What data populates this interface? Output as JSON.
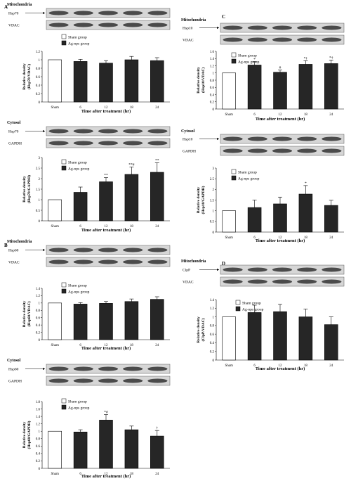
{
  "figure": {
    "panels": [
      {
        "letter": "A",
        "blocks": [
          {
            "section": "Mitochondria",
            "blots": [
              {
                "label": "Hsp70",
                "arrow": true
              },
              {
                "label": "VDAC",
                "arrow": false
              }
            ],
            "ylabel": "Relative density",
            "ylabel2": "(Hsp70/VDAC)",
            "legend": [
              "Sham group",
              "Ag-nps group"
            ],
            "xlabel": "Time after treatment (hr)"
          },
          {
            "section": "Cytosol",
            "blots": [
              {
                "label": "Hsp70",
                "arrow": true
              },
              {
                "label": "GAPDH",
                "arrow": false
              }
            ],
            "ylabel": "Relative density",
            "ylabel2": "(Hsp70/GAPDH)",
            "legend": [
              "Sham group",
              "Ag-nps group"
            ],
            "xlabel": "Time after treatment (hr)"
          }
        ]
      },
      {
        "letter": "B",
        "blocks": [
          {
            "section": "Mitochondria",
            "blots": [
              {
                "label": "Hsp60",
                "arrow": true
              },
              {
                "label": "VDAC",
                "arrow": false
              }
            ],
            "ylabel": "Relative density",
            "ylabel2": "(Hsp60/VDAC)",
            "legend": [
              "Sham group",
              "Ag-nps group"
            ],
            "xlabel": "Time after treatment (hr)"
          },
          {
            "section": "Cytosol",
            "blots": [
              {
                "label": "Hsp60",
                "arrow": true
              },
              {
                "label": "GAPDH",
                "arrow": false
              }
            ],
            "ylabel": "Relative density",
            "ylabel2": "(Hsp60/GAPDH)",
            "legend": [
              "Sham group",
              "Ag-nps group"
            ],
            "xlabel": "Time after treatment (hr)"
          }
        ]
      },
      {
        "letter": "C",
        "blocks": [
          {
            "section": "Mitochondria",
            "blots": [
              {
                "label": "Hsp10",
                "arrow": true
              },
              {
                "label": "VDAC",
                "arrow": false
              }
            ],
            "ylabel": "Relative density",
            "ylabel2": "(Hsp10/VDAC)",
            "legend": [
              "Sham group",
              "Ag-nps group"
            ],
            "xlabel": "Time after treatment (hr)"
          },
          {
            "section": "Cytosol",
            "blots": [
              {
                "label": "Hsp10",
                "arrow": true
              },
              {
                "label": "GAPDH",
                "arrow": false
              }
            ],
            "ylabel": "Relative density",
            "ylabel2": "(Hsp10/GAPDH)",
            "legend": [
              "Sham group",
              "Ag-nps group"
            ],
            "xlabel": "Time after treatment (hr)"
          }
        ]
      },
      {
        "letter": "D",
        "blocks": [
          {
            "section": "Mitochondria",
            "blots": [
              {
                "label": "ClpP",
                "arrow": true
              },
              {
                "label": "VDAC",
                "arrow": false
              }
            ],
            "ylabel": "Relative density",
            "ylabel2": "(ClpP/VDAC)",
            "legend": [
              "Sham group",
              "Ag-nps group"
            ],
            "xlabel": "Time after treatment (hr)"
          }
        ]
      }
    ]
  },
  "chart_data": [
    {
      "type": "bar",
      "panel": "A",
      "section": "Mitochondria",
      "categories": [
        "Sham",
        "6",
        "12",
        "18",
        "24"
      ],
      "values": [
        1.0,
        0.96,
        0.92,
        1.0,
        0.98
      ],
      "errors": [
        0,
        0.05,
        0.06,
        0.08,
        0.07
      ],
      "annotations": [
        "",
        "",
        "",
        "",
        ""
      ],
      "ylim": [
        0,
        1.2
      ],
      "ticks": [
        "0",
        "0.2",
        "0.4",
        "0.6",
        "0.8",
        "1",
        "1.2"
      ]
    },
    {
      "type": "bar",
      "panel": "A",
      "section": "Cytosol",
      "categories": [
        "Sham",
        "6",
        "12",
        "18",
        "24"
      ],
      "values": [
        1.0,
        1.35,
        1.85,
        2.2,
        2.3
      ],
      "errors": [
        0,
        0.25,
        0.2,
        0.35,
        0.45
      ],
      "annotations": [
        "",
        "",
        "**",
        "**#",
        "**"
      ],
      "ylim": [
        0,
        3.0
      ],
      "ticks": [
        "0",
        "0.5",
        "1",
        "1.5",
        "2",
        "2.5",
        "3"
      ]
    },
    {
      "type": "bar",
      "panel": "B",
      "section": "Mitochondria",
      "categories": [
        "Sham",
        "6",
        "12",
        "18",
        "24"
      ],
      "values": [
        1.0,
        0.97,
        0.99,
        1.04,
        1.1
      ],
      "errors": [
        0,
        0.04,
        0.05,
        0.07,
        0.07
      ],
      "annotations": [
        "",
        "",
        "",
        "",
        ""
      ],
      "ylim": [
        0,
        1.4
      ],
      "ticks": [
        "0",
        "0.2",
        "0.4",
        "0.6",
        "0.8",
        "1",
        "1.2",
        "1.4"
      ]
    },
    {
      "type": "bar",
      "panel": "B",
      "section": "Cytosol",
      "categories": [
        "Sham",
        "6",
        "12",
        "18",
        "24"
      ],
      "values": [
        1.0,
        0.98,
        1.3,
        1.04,
        0.87
      ],
      "errors": [
        0,
        0.06,
        0.15,
        0.1,
        0.15
      ],
      "annotations": [
        "",
        "",
        "*#",
        "",
        "†"
      ],
      "ylim": [
        0,
        1.8
      ],
      "ticks": [
        "0",
        "0.2",
        "0.4",
        "0.6",
        "0.8",
        "1",
        "1.2",
        "1.4",
        "1.6",
        "1.8"
      ]
    },
    {
      "type": "bar",
      "panel": "C",
      "section": "Mitochondria",
      "categories": [
        "Sham",
        "6",
        "12",
        "18",
        "24"
      ],
      "values": [
        1.0,
        1.22,
        1.02,
        1.24,
        1.26
      ],
      "errors": [
        0,
        0.09,
        0.06,
        0.1,
        0.1
      ],
      "annotations": [
        "",
        "*",
        "#",
        "*†",
        "*†"
      ],
      "ylim": [
        0,
        1.6
      ],
      "ticks": [
        "0",
        "0.2",
        "0.4",
        "0.6",
        "0.8",
        "1",
        "1.2",
        "1.4",
        "1.6"
      ]
    },
    {
      "type": "bar",
      "panel": "C",
      "section": "Cytosol",
      "categories": [
        "Sham",
        "6",
        "12",
        "18",
        "24"
      ],
      "values": [
        1.0,
        1.15,
        1.32,
        1.78,
        1.25
      ],
      "errors": [
        0,
        0.35,
        0.32,
        0.4,
        0.24
      ],
      "annotations": [
        "",
        "",
        "",
        "*",
        ""
      ],
      "ylim": [
        0,
        3.0
      ],
      "ticks": [
        "0",
        "0.5",
        "1",
        "1.5",
        "2",
        "2.5",
        "3"
      ]
    },
    {
      "type": "bar",
      "panel": "D",
      "section": "Mitochondria",
      "categories": [
        "Sham",
        "6",
        "12",
        "18",
        "24"
      ],
      "values": [
        1.0,
        1.1,
        1.12,
        1.0,
        0.82
      ],
      "errors": [
        0,
        0.17,
        0.17,
        0.18,
        0.18
      ],
      "annotations": [
        "",
        "",
        "",
        "",
        ""
      ],
      "ylim": [
        0,
        1.4
      ],
      "ticks": [
        "0",
        "0.2",
        "0.4",
        "0.6",
        "0.8",
        "1",
        "1.2",
        "1.4"
      ]
    }
  ],
  "colors": {
    "sham": "#ffffff",
    "agnps": "#262626",
    "ink": "#000000",
    "blot_bg": "#d6d6d6",
    "band": "#333333"
  }
}
